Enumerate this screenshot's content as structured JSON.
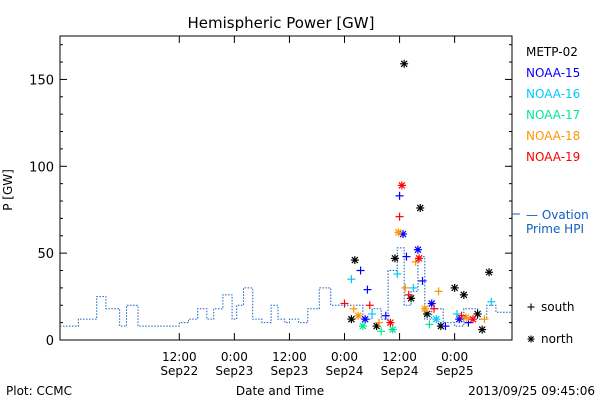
{
  "chart_data": {
    "type": "scatter",
    "title": "Hemispheric Power [GW]",
    "ylabel": "P [GW]",
    "xlabel": "Date and Time",
    "ylim": [
      0,
      175
    ],
    "yticks": [
      0,
      50,
      100,
      150
    ],
    "xlim": [
      "2013-09-21T10:00",
      "2013-09-25T12:30"
    ],
    "xticks": [
      {
        "t": "2013-09-22T12:00",
        "line1": "12:00",
        "line2": "Sep22"
      },
      {
        "t": "2013-09-23T00:00",
        "line1": "0:00",
        "line2": "Sep23"
      },
      {
        "t": "2013-09-23T12:00",
        "line1": "12:00",
        "line2": "Sep23"
      },
      {
        "t": "2013-09-24T00:00",
        "line1": "0:00",
        "line2": "Sep24"
      },
      {
        "t": "2013-09-24T12:00",
        "line1": "12:00",
        "line2": "Sep24"
      },
      {
        "t": "2013-09-25T00:00",
        "line1": "0:00",
        "line2": "Sep25"
      }
    ],
    "series": [
      {
        "name": "METP-02",
        "color": "#000000",
        "points": [
          {
            "x": "2013-09-24T02:15",
            "y": 46,
            "m": "north"
          },
          {
            "x": "2013-09-24T01:30",
            "y": 12,
            "m": "north"
          },
          {
            "x": "2013-09-24T07:00",
            "y": 8,
            "m": "north"
          },
          {
            "x": "2013-09-24T11:00",
            "y": 47,
            "m": "north"
          },
          {
            "x": "2013-09-24T13:00",
            "y": 159,
            "m": "north"
          },
          {
            "x": "2013-09-24T14:30",
            "y": 24,
            "m": "north"
          },
          {
            "x": "2013-09-24T16:30",
            "y": 76,
            "m": "north"
          },
          {
            "x": "2013-09-24T18:00",
            "y": 15,
            "m": "north"
          },
          {
            "x": "2013-09-24T21:00",
            "y": 8,
            "m": "north"
          },
          {
            "x": "2013-09-25T00:00",
            "y": 30,
            "m": "north"
          },
          {
            "x": "2013-09-25T02:00",
            "y": 26,
            "m": "north"
          },
          {
            "x": "2013-09-25T05:00",
            "y": 15,
            "m": "north"
          },
          {
            "x": "2013-09-25T07:30",
            "y": 39,
            "m": "north"
          },
          {
            "x": "2013-09-25T06:00",
            "y": 6,
            "m": "north"
          }
        ]
      },
      {
        "name": "NOAA-15",
        "color": "#0000ff",
        "points": [
          {
            "x": "2013-09-24T03:30",
            "y": 40,
            "m": "south"
          },
          {
            "x": "2013-09-24T05:00",
            "y": 29,
            "m": "south"
          },
          {
            "x": "2013-09-24T04:30",
            "y": 12,
            "m": "north"
          },
          {
            "x": "2013-09-24T09:00",
            "y": 14,
            "m": "south"
          },
          {
            "x": "2013-09-24T12:00",
            "y": 83,
            "m": "south"
          },
          {
            "x": "2013-09-24T12:45",
            "y": 61,
            "m": "north"
          },
          {
            "x": "2013-09-24T13:30",
            "y": 48,
            "m": "south"
          },
          {
            "x": "2013-09-24T16:00",
            "y": 52,
            "m": "north"
          },
          {
            "x": "2013-09-24T17:00",
            "y": 34,
            "m": "south"
          },
          {
            "x": "2013-09-24T19:00",
            "y": 21,
            "m": "north"
          },
          {
            "x": "2013-09-24T22:00",
            "y": 8,
            "m": "south"
          },
          {
            "x": "2013-09-25T01:00",
            "y": 12,
            "m": "north"
          },
          {
            "x": "2013-09-25T03:00",
            "y": 10,
            "m": "south"
          }
        ]
      },
      {
        "name": "NOAA-16",
        "color": "#00c8ff",
        "points": [
          {
            "x": "2013-09-24T01:30",
            "y": 35,
            "m": "south"
          },
          {
            "x": "2013-09-24T06:00",
            "y": 15,
            "m": "south"
          },
          {
            "x": "2013-09-24T11:30",
            "y": 38,
            "m": "south"
          },
          {
            "x": "2013-09-24T15:00",
            "y": 30,
            "m": "south"
          },
          {
            "x": "2013-09-24T20:00",
            "y": 12,
            "m": "north"
          },
          {
            "x": "2013-09-25T00:30",
            "y": 15,
            "m": "south"
          },
          {
            "x": "2013-09-25T08:00",
            "y": 22,
            "m": "south"
          }
        ]
      },
      {
        "name": "NOAA-17",
        "color": "#00e896",
        "points": [
          {
            "x": "2013-09-24T04:00",
            "y": 8,
            "m": "north"
          },
          {
            "x": "2013-09-24T08:00",
            "y": 5,
            "m": "south"
          },
          {
            "x": "2013-09-24T10:30",
            "y": 6,
            "m": "north"
          },
          {
            "x": "2013-09-24T18:30",
            "y": 9,
            "m": "south"
          }
        ]
      },
      {
        "name": "NOAA-18",
        "color": "#ff9600",
        "points": [
          {
            "x": "2013-09-24T02:00",
            "y": 18,
            "m": "south"
          },
          {
            "x": "2013-09-24T03:00",
            "y": 14,
            "m": "north"
          },
          {
            "x": "2013-09-24T07:30",
            "y": 10,
            "m": "south"
          },
          {
            "x": "2013-09-24T11:45",
            "y": 62,
            "m": "north"
          },
          {
            "x": "2013-09-24T13:15",
            "y": 30,
            "m": "south"
          },
          {
            "x": "2013-09-24T15:30",
            "y": 45,
            "m": "south"
          },
          {
            "x": "2013-09-24T17:30",
            "y": 18,
            "m": "north"
          },
          {
            "x": "2013-09-24T20:30",
            "y": 28,
            "m": "south"
          },
          {
            "x": "2013-09-25T02:30",
            "y": 13,
            "m": "north"
          },
          {
            "x": "2013-09-25T06:30",
            "y": 12,
            "m": "south"
          }
        ]
      },
      {
        "name": "NOAA-19",
        "color": "#ff0000",
        "points": [
          {
            "x": "2013-09-24T00:00",
            "y": 21,
            "m": "south"
          },
          {
            "x": "2013-09-24T05:30",
            "y": 20,
            "m": "south"
          },
          {
            "x": "2013-09-24T10:00",
            "y": 10,
            "m": "north"
          },
          {
            "x": "2013-09-24T12:00",
            "y": 71,
            "m": "south"
          },
          {
            "x": "2013-09-24T12:30",
            "y": 89,
            "m": "north"
          },
          {
            "x": "2013-09-24T14:00",
            "y": 26,
            "m": "south"
          },
          {
            "x": "2013-09-24T16:15",
            "y": 47,
            "m": "north"
          },
          {
            "x": "2013-09-24T19:30",
            "y": 18,
            "m": "south"
          },
          {
            "x": "2013-09-25T01:30",
            "y": 14,
            "m": "south"
          },
          {
            "x": "2013-09-25T04:00",
            "y": 12,
            "m": "north"
          }
        ]
      }
    ],
    "ovation": {
      "name": "Ovation Prime HPI",
      "color": "#1060c0",
      "legend_line1": "— Ovation",
      "legend_line2": "Prime HPI",
      "steps": [
        [
          "2013-09-21T10:00",
          8
        ],
        [
          "2013-09-21T14:00",
          12
        ],
        [
          "2013-09-21T18:00",
          25
        ],
        [
          "2013-09-21T20:00",
          18
        ],
        [
          "2013-09-21T23:00",
          8
        ],
        [
          "2013-09-22T00:30",
          20
        ],
        [
          "2013-09-22T03:00",
          8
        ],
        [
          "2013-09-22T12:00",
          10
        ],
        [
          "2013-09-22T14:00",
          12
        ],
        [
          "2013-09-22T16:00",
          18
        ],
        [
          "2013-09-22T18:00",
          12
        ],
        [
          "2013-09-22T19:30",
          18
        ],
        [
          "2013-09-22T21:30",
          26
        ],
        [
          "2013-09-22T23:30",
          12
        ],
        [
          "2013-09-23T00:30",
          20
        ],
        [
          "2013-09-23T02:00",
          30
        ],
        [
          "2013-09-23T04:00",
          12
        ],
        [
          "2013-09-23T06:00",
          10
        ],
        [
          "2013-09-23T08:00",
          20
        ],
        [
          "2013-09-23T09:30",
          12
        ],
        [
          "2013-09-23T11:00",
          10
        ],
        [
          "2013-09-23T12:00",
          12
        ],
        [
          "2013-09-23T14:00",
          10
        ],
        [
          "2013-09-23T16:00",
          18
        ],
        [
          "2013-09-23T18:30",
          30
        ],
        [
          "2013-09-23T21:00",
          20
        ],
        [
          "2013-09-24T04:00",
          12
        ],
        [
          "2013-09-24T06:00",
          18
        ],
        [
          "2013-09-24T08:00",
          12
        ],
        [
          "2013-09-24T09:30",
          40
        ],
        [
          "2013-09-24T11:30",
          53
        ],
        [
          "2013-09-24T13:00",
          20
        ],
        [
          "2013-09-24T14:30",
          28
        ],
        [
          "2013-09-24T16:00",
          48
        ],
        [
          "2013-09-24T17:30",
          12
        ],
        [
          "2013-09-24T19:00",
          18
        ],
        [
          "2013-09-24T21:30",
          10
        ],
        [
          "2013-09-25T00:00",
          8
        ],
        [
          "2013-09-25T02:00",
          18
        ],
        [
          "2013-09-25T05:00",
          12
        ],
        [
          "2013-09-25T07:00",
          20
        ],
        [
          "2013-09-25T09:00",
          16
        ],
        [
          "2013-09-25T12:30",
          16
        ]
      ]
    },
    "marker_legend": [
      {
        "symbol": "+",
        "label": "south"
      },
      {
        "symbol": "*",
        "label": "north"
      }
    ]
  },
  "footer": {
    "plot_source": "Plot: CCMC",
    "timestamp": "2013/09/25 09:45:06"
  }
}
